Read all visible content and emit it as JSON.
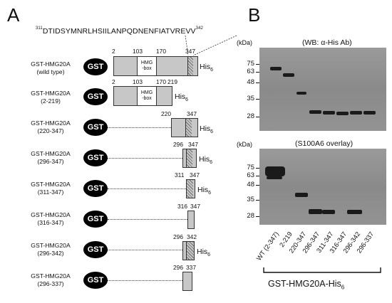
{
  "panel_a": {
    "letter": "A",
    "sequence": {
      "start": "311",
      "residues": "DTIDSYMNRLHSIILANPQDNENFIATVREVV",
      "end": "342"
    },
    "gst_label": "GST",
    "hmg_box": {
      "line1": "HMG",
      "line2": "-box"
    },
    "his_tag": {
      "base": "His",
      "sub": "6"
    },
    "constructs": [
      {
        "name": "GST-HMG20A",
        "range": "(wild type)",
        "positions": [
          "2",
          "103",
          "170",
          "347"
        ]
      },
      {
        "name": "GST-HMG20A",
        "range": "(2-219)",
        "positions": [
          "2",
          "103",
          "170",
          "219"
        ]
      },
      {
        "name": "GST-HMG20A",
        "range": "(220-347)",
        "positions": [
          "220",
          "347"
        ]
      },
      {
        "name": "GST-HMG20A",
        "range": "(296-347)",
        "positions": [
          "296",
          "347"
        ]
      },
      {
        "name": "GST-HMG20A",
        "range": "(311-347)",
        "positions": [
          "311",
          "347"
        ]
      },
      {
        "name": "GST-HMG20A",
        "range": "(316-347)",
        "positions": [
          "316",
          "347"
        ]
      },
      {
        "name": "GST-HMG20A",
        "range": "(296-342)",
        "positions": [
          "296",
          "342"
        ]
      },
      {
        "name": "GST-HMG20A",
        "range": "(296-337)",
        "positions": [
          "296",
          "337"
        ]
      }
    ]
  },
  "panel_b": {
    "letter": "B",
    "kda_label": "(kDa)",
    "top_blot": {
      "title": "(WB: α-His Ab)",
      "markers": [
        "75",
        "63",
        "48",
        "35",
        "28"
      ]
    },
    "bottom_blot": {
      "title": "(S100A6 overlay)",
      "markers": [
        "75",
        "63",
        "48",
        "35",
        "28"
      ]
    },
    "lanes": [
      "WT (2-347)",
      "2-219",
      "220-347",
      "296-347",
      "311-347",
      "316-347",
      "296-342",
      "296-337"
    ],
    "footer": {
      "base": "GST-HMG20A-His",
      "sub": "6"
    }
  }
}
